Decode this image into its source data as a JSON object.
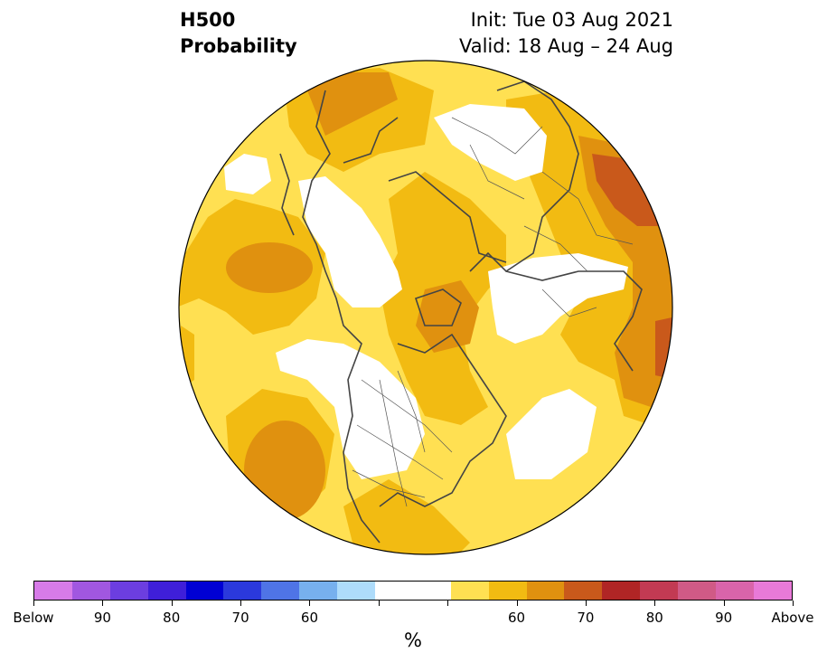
{
  "title": {
    "variable": "H500",
    "product": "Probability",
    "init": "Init: Tue 03 Aug 2021",
    "valid": "Valid: 18 Aug – 24 Aug"
  },
  "colorbar": {
    "colors": [
      "#d77be8",
      "#a157e0",
      "#6c3ee0",
      "#3f1fd9",
      "#0000d4",
      "#2b39dc",
      "#4f74e6",
      "#77b0ee",
      "#aedcfb",
      "#ffffff",
      "#ffffff",
      "#ffe052",
      "#f2bb12",
      "#e0910f",
      "#c9591b",
      "#b02525",
      "#c23a53",
      "#d05a86",
      "#d964aa",
      "#e87ad8"
    ],
    "tick_labels": [
      "Below",
      "90",
      "80",
      "70",
      "60",
      "",
      "",
      "60",
      "70",
      "80",
      "90",
      "Above"
    ],
    "unit": "%"
  },
  "map": {
    "projection": "north-polar-orthographic",
    "region": "Northern Hemisphere"
  }
}
